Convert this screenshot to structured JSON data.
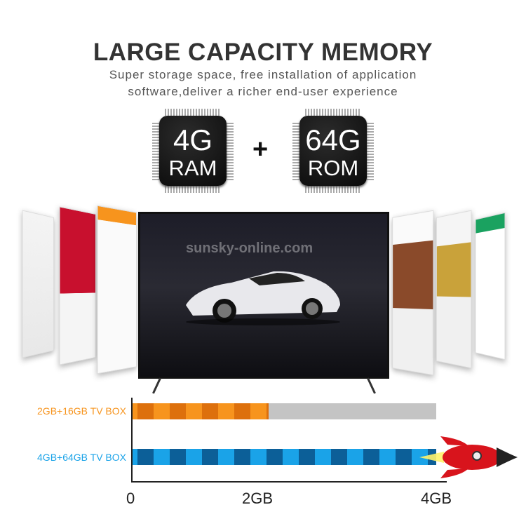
{
  "header": {
    "title": "LARGE CAPACITY MEMORY",
    "subtitle_lines": [
      "Super storage space, free installation of application",
      "software,deliver a richer end-user experience"
    ]
  },
  "chips": [
    {
      "value": "4G",
      "type": "RAM"
    },
    {
      "value": "64G",
      "type": "ROM"
    }
  ],
  "plus": "+",
  "watermark": "sunsky-online.com",
  "comparison": {
    "unit_max_gb": 4,
    "bars": [
      {
        "label": "2GB+16GB TV BOX",
        "value_gb": 2,
        "color": "#f7941d"
      },
      {
        "label": "4GB+64GB TV BOX",
        "value_gb": 4,
        "color": "#1aa3e8"
      }
    ],
    "ticks": [
      "0",
      "2GB",
      "4GB"
    ],
    "track_color": "#c4c4c4"
  }
}
